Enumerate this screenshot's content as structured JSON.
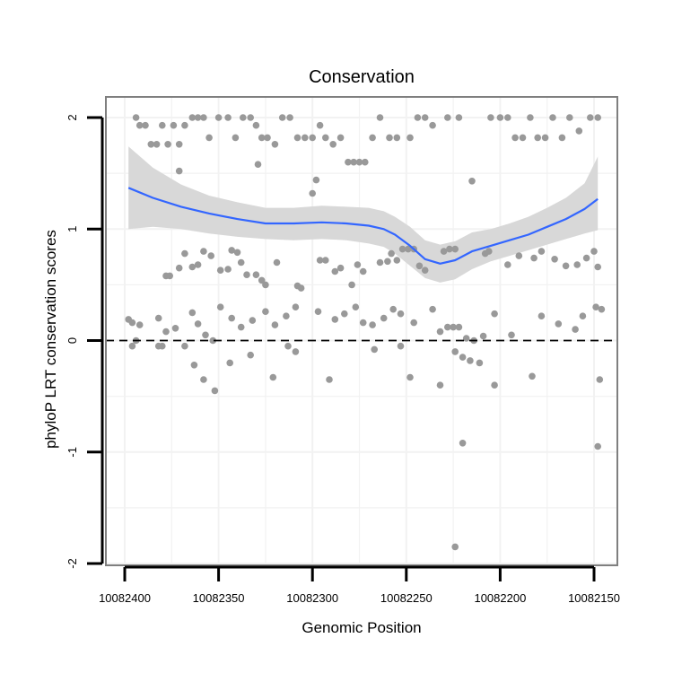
{
  "chart_data": {
    "type": "scatter",
    "title": "Conservation",
    "xlabel": "Genomic Position",
    "ylabel": "phyloP LRT conservation scores",
    "xlim": [
      10082150,
      10082400
    ],
    "ylim": [
      -2,
      2
    ],
    "x_reversed": true,
    "x_ticks": [
      10082400,
      10082350,
      10082300,
      10082250,
      10082200,
      10082150
    ],
    "y_ticks": [
      2,
      1,
      0,
      -1,
      -2
    ],
    "reference_line": {
      "y": 0,
      "style": "dashed"
    },
    "colors": {
      "points": "#999999",
      "smooth_line": "#3366ff",
      "ribbon": "#d6d6d6",
      "panel_border": "#7f7f7f",
      "grid": "#f2f2f2"
    },
    "points": [
      [
        10082394,
        2.0
      ],
      [
        10082392,
        1.93
      ],
      [
        10082389,
        1.93
      ],
      [
        10082386,
        1.76
      ],
      [
        10082383,
        1.76
      ],
      [
        10082380,
        1.93
      ],
      [
        10082377,
        1.76
      ],
      [
        10082374,
        1.93
      ],
      [
        10082371,
        1.76
      ],
      [
        10082368,
        1.93
      ],
      [
        10082364,
        2.0
      ],
      [
        10082361,
        2.0
      ],
      [
        10082358,
        2.0
      ],
      [
        10082355,
        1.82
      ],
      [
        10082350,
        2.0
      ],
      [
        10082345,
        2.0
      ],
      [
        10082341,
        1.82
      ],
      [
        10082337,
        2.0
      ],
      [
        10082333,
        2.0
      ],
      [
        10082330,
        1.93
      ],
      [
        10082327,
        1.82
      ],
      [
        10082324,
        1.82
      ],
      [
        10082320,
        1.76
      ],
      [
        10082316,
        2.0
      ],
      [
        10082312,
        2.0
      ],
      [
        10082308,
        1.82
      ],
      [
        10082304,
        1.82
      ],
      [
        10082300,
        1.82
      ],
      [
        10082296,
        1.93
      ],
      [
        10082293,
        1.82
      ],
      [
        10082289,
        1.76
      ],
      [
        10082285,
        1.82
      ],
      [
        10082281,
        1.6
      ],
      [
        10082278,
        1.6
      ],
      [
        10082275,
        1.6
      ],
      [
        10082272,
        1.6
      ],
      [
        10082268,
        1.82
      ],
      [
        10082264,
        2.0
      ],
      [
        10082259,
        1.82
      ],
      [
        10082255,
        1.82
      ],
      [
        10082248,
        1.82
      ],
      [
        10082244,
        2.0
      ],
      [
        10082240,
        2.0
      ],
      [
        10082236,
        1.93
      ],
      [
        10082228,
        2.0
      ],
      [
        10082222,
        2.0
      ],
      [
        10082215,
        1.43
      ],
      [
        10082205,
        2.0
      ],
      [
        10082200,
        2.0
      ],
      [
        10082196,
        2.0
      ],
      [
        10082192,
        1.82
      ],
      [
        10082188,
        1.82
      ],
      [
        10082184,
        2.0
      ],
      [
        10082180,
        1.82
      ],
      [
        10082176,
        1.82
      ],
      [
        10082172,
        2.0
      ],
      [
        10082167,
        1.82
      ],
      [
        10082163,
        2.0
      ],
      [
        10082158,
        1.88
      ],
      [
        10082152,
        2.0
      ],
      [
        10082148,
        2.0
      ],
      [
        10082371,
        1.52
      ],
      [
        10082329,
        1.58
      ],
      [
        10082300,
        1.32
      ],
      [
        10082298,
        1.44
      ],
      [
        10082378,
        0.58
      ],
      [
        10082376,
        0.58
      ],
      [
        10082371,
        0.65
      ],
      [
        10082368,
        0.78
      ],
      [
        10082364,
        0.66
      ],
      [
        10082361,
        0.68
      ],
      [
        10082358,
        0.8
      ],
      [
        10082354,
        0.76
      ],
      [
        10082349,
        0.63
      ],
      [
        10082345,
        0.64
      ],
      [
        10082343,
        0.81
      ],
      [
        10082340,
        0.79
      ],
      [
        10082338,
        0.7
      ],
      [
        10082335,
        0.59
      ],
      [
        10082330,
        0.59
      ],
      [
        10082327,
        0.54
      ],
      [
        10082325,
        0.5
      ],
      [
        10082319,
        0.7
      ],
      [
        10082308,
        0.49
      ],
      [
        10082306,
        0.47
      ],
      [
        10082296,
        0.72
      ],
      [
        10082293,
        0.72
      ],
      [
        10082288,
        0.62
      ],
      [
        10082285,
        0.65
      ],
      [
        10082279,
        0.5
      ],
      [
        10082276,
        0.68
      ],
      [
        10082273,
        0.62
      ],
      [
        10082264,
        0.7
      ],
      [
        10082260,
        0.71
      ],
      [
        10082258,
        0.78
      ],
      [
        10082255,
        0.72
      ],
      [
        10082252,
        0.82
      ],
      [
        10082249,
        0.82
      ],
      [
        10082246,
        0.82
      ],
      [
        10082243,
        0.67
      ],
      [
        10082240,
        0.63
      ],
      [
        10082230,
        0.8
      ],
      [
        10082227,
        0.82
      ],
      [
        10082224,
        0.82
      ],
      [
        10082208,
        0.78
      ],
      [
        10082206,
        0.8
      ],
      [
        10082196,
        0.68
      ],
      [
        10082190,
        0.76
      ],
      [
        10082182,
        0.74
      ],
      [
        10082178,
        0.8
      ],
      [
        10082171,
        0.73
      ],
      [
        10082165,
        0.67
      ],
      [
        10082159,
        0.68
      ],
      [
        10082154,
        0.74
      ],
      [
        10082150,
        0.8
      ],
      [
        10082148,
        0.66
      ],
      [
        10082398,
        0.19
      ],
      [
        10082396,
        0.16
      ],
      [
        10082392,
        0.14
      ],
      [
        10082382,
        0.2
      ],
      [
        10082378,
        0.08
      ],
      [
        10082373,
        0.11
      ],
      [
        10082364,
        0.25
      ],
      [
        10082361,
        0.15
      ],
      [
        10082357,
        0.05
      ],
      [
        10082353,
        0.0
      ],
      [
        10082349,
        0.3
      ],
      [
        10082343,
        0.2
      ],
      [
        10082338,
        0.12
      ],
      [
        10082332,
        0.18
      ],
      [
        10082325,
        0.26
      ],
      [
        10082320,
        0.14
      ],
      [
        10082314,
        0.22
      ],
      [
        10082309,
        0.3
      ],
      [
        10082297,
        0.26
      ],
      [
        10082288,
        0.19
      ],
      [
        10082283,
        0.24
      ],
      [
        10082277,
        0.3
      ],
      [
        10082273,
        0.16
      ],
      [
        10082268,
        0.14
      ],
      [
        10082262,
        0.2
      ],
      [
        10082257,
        0.28
      ],
      [
        10082253,
        0.24
      ],
      [
        10082246,
        0.16
      ],
      [
        10082236,
        0.28
      ],
      [
        10082232,
        0.08
      ],
      [
        10082228,
        0.12
      ],
      [
        10082225,
        0.12
      ],
      [
        10082222,
        0.12
      ],
      [
        10082218,
        0.02
      ],
      [
        10082214,
        0.0
      ],
      [
        10082209,
        0.04
      ],
      [
        10082203,
        0.24
      ],
      [
        10082194,
        0.05
      ],
      [
        10082178,
        0.22
      ],
      [
        10082169,
        0.15
      ],
      [
        10082160,
        0.1
      ],
      [
        10082156,
        0.22
      ],
      [
        10082146,
        0.28
      ],
      [
        10082149,
        0.3
      ],
      [
        10082396,
        -0.05
      ],
      [
        10082394,
        0.0
      ],
      [
        10082382,
        -0.05
      ],
      [
        10082380,
        -0.05
      ],
      [
        10082368,
        -0.05
      ],
      [
        10082363,
        -0.22
      ],
      [
        10082358,
        -0.35
      ],
      [
        10082352,
        -0.45
      ],
      [
        10082344,
        -0.2
      ],
      [
        10082333,
        -0.13
      ],
      [
        10082321,
        -0.33
      ],
      [
        10082313,
        -0.05
      ],
      [
        10082309,
        -0.1
      ],
      [
        10082291,
        -0.35
      ],
      [
        10082267,
        -0.08
      ],
      [
        10082253,
        -0.05
      ],
      [
        10082248,
        -0.33
      ],
      [
        10082232,
        -0.4
      ],
      [
        10082224,
        -0.1
      ],
      [
        10082220,
        -0.15
      ],
      [
        10082216,
        -0.18
      ],
      [
        10082211,
        -0.2
      ],
      [
        10082203,
        -0.4
      ],
      [
        10082183,
        -0.32
      ],
      [
        10082147,
        -0.35
      ],
      [
        10082220,
        -0.92
      ],
      [
        10082148,
        -0.95
      ],
      [
        10082224,
        -1.85
      ]
    ],
    "smooth": {
      "x": [
        10082398,
        10082385,
        10082370,
        10082355,
        10082340,
        10082325,
        10082310,
        10082295,
        10082282,
        10082270,
        10082262,
        10082256,
        10082248,
        10082240,
        10082232,
        10082224,
        10082215,
        10082205,
        10082195,
        10082185,
        10082175,
        10082165,
        10082155,
        10082148
      ],
      "y": [
        1.37,
        1.28,
        1.2,
        1.14,
        1.09,
        1.05,
        1.05,
        1.06,
        1.05,
        1.03,
        1.0,
        0.95,
        0.85,
        0.73,
        0.69,
        0.72,
        0.8,
        0.85,
        0.9,
        0.95,
        1.02,
        1.09,
        1.18,
        1.27
      ],
      "lower": [
        1.0,
        1.02,
        1.0,
        0.96,
        0.93,
        0.91,
        0.9,
        0.91,
        0.9,
        0.87,
        0.84,
        0.78,
        0.67,
        0.56,
        0.52,
        0.55,
        0.64,
        0.71,
        0.76,
        0.81,
        0.86,
        0.91,
        0.96,
        0.99
      ],
      "upper": [
        1.74,
        1.55,
        1.4,
        1.3,
        1.24,
        1.19,
        1.19,
        1.21,
        1.2,
        1.19,
        1.16,
        1.11,
        1.02,
        0.9,
        0.86,
        0.89,
        0.97,
        1.0,
        1.05,
        1.11,
        1.19,
        1.28,
        1.41,
        1.65
      ]
    }
  }
}
